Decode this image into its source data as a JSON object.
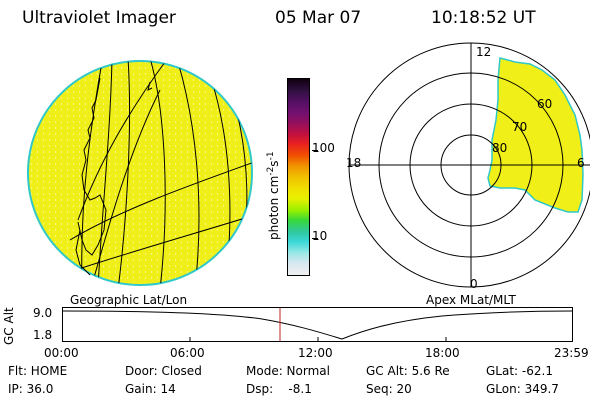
{
  "header": {
    "instrument": "Ultraviolet Imager",
    "date": "05 Mar 07",
    "time": "10:18:52 UT"
  },
  "colorbar": {
    "unit_prefix": "photon cm",
    "unit_exp1": "-2",
    "unit_mid": "s",
    "unit_exp2": "-1",
    "tick_high": "100",
    "tick_low": "10",
    "colors": [
      "#f0f0f0",
      "#d8e8f0",
      "#9ee8e8",
      "#3ad8d8",
      "#30c8a0",
      "#38d838",
      "#98f000",
      "#e8f000",
      "#f0e000",
      "#f0c000",
      "#f09000",
      "#f05000",
      "#e82020",
      "#c01040",
      "#901060",
      "#701070",
      "#501060",
      "#301040",
      "#100010"
    ]
  },
  "left_panel": {
    "caption": "Geographic Lat/Lon",
    "disk_color": "#f0f018",
    "rim_color": "#30c8c8"
  },
  "right_panel": {
    "caption": "Apex MLat/MLT",
    "mlt_labels": {
      "top": "12",
      "bottom": "0",
      "left": "18",
      "right": "6"
    },
    "mlat_labels": [
      "60",
      "70",
      "80"
    ],
    "region_color": "#f0f018"
  },
  "timeline": {
    "axis_label": "GC Alt",
    "y_high": "9.0",
    "y_low": "1.8",
    "ticks": [
      "00:00",
      "06:00",
      "12:00",
      "18:00",
      "23:59"
    ],
    "marker_color": "#c02020"
  },
  "info": {
    "row1": {
      "flt": "Flt: HOME",
      "door": "Door: Closed",
      "mode": "Mode: Normal",
      "gc_alt": "GC Alt: 5.6 Re",
      "glat": "GLat: -62.1"
    },
    "row2": {
      "ip": "IP: 36.0",
      "gain": "Gain: 14",
      "dsp": "Dsp:    -8.1",
      "seq": "Seq: 20",
      "glon": "GLon: 349.7"
    }
  }
}
